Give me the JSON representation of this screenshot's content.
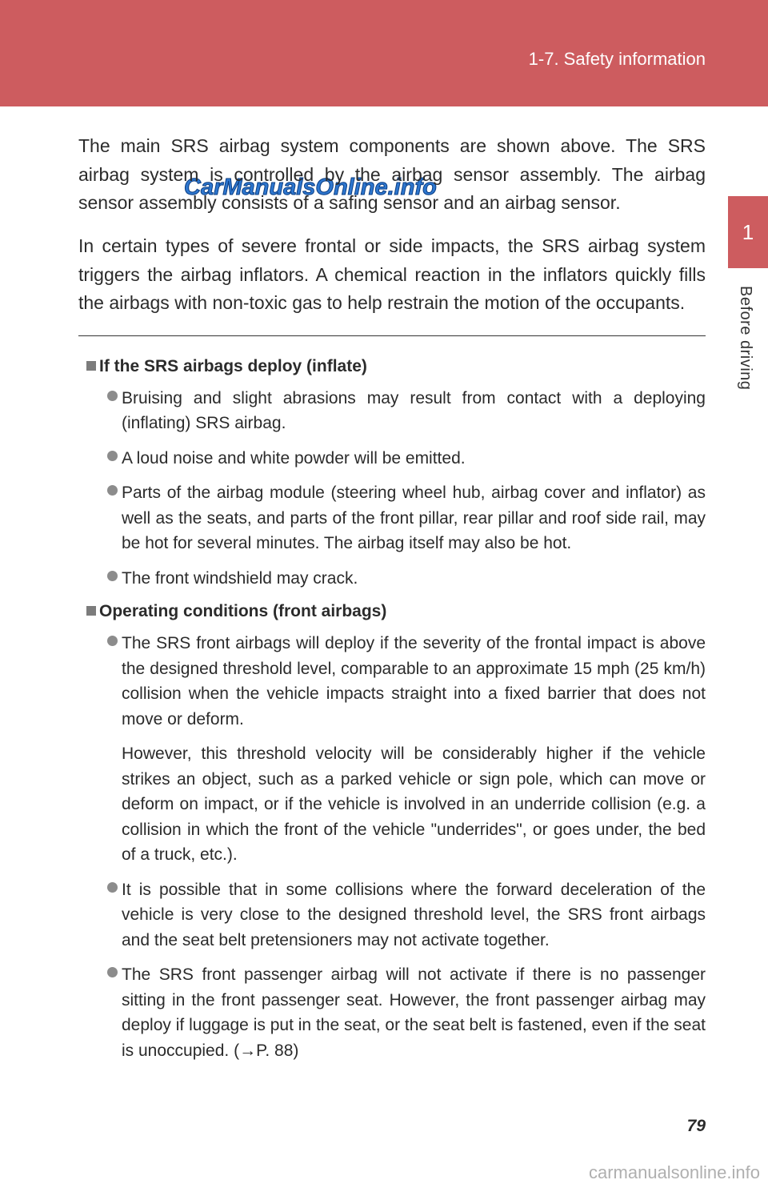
{
  "colors": {
    "header_bg": "#cd5c5f",
    "side_tab_bg": "#cd5c5f",
    "text": "#2b2b2b",
    "square_mark": "#7c7c7c",
    "bullet_dot": "#8c8c8c",
    "watermark_stroke": "#2e77cf",
    "footer_watermark": "rgba(110,110,110,0.55)"
  },
  "header": {
    "section_label": "1-7. Safety information"
  },
  "side": {
    "chapter_number": "1",
    "chapter_title": "Before driving"
  },
  "intro": {
    "para1": "The main SRS airbag system components are shown above. The SRS airbag system is controlled by the airbag sensor assembly. The airbag sensor assembly consists of a safing sensor and an airbag sensor.",
    "para2": "In certain types of severe frontal or side impacts, the SRS airbag system triggers the airbag inflators. A chemical reaction in the inflators quickly fills the airbags with non-toxic gas to help restrain the motion of the occupants."
  },
  "sections": [
    {
      "heading": "If the SRS airbags deploy (inflate)",
      "bullets": [
        {
          "text": "Bruising and slight abrasions may result from contact with a deploying (inflating) SRS airbag."
        },
        {
          "text": "A loud noise and white powder will be emitted."
        },
        {
          "text": "Parts of the airbag module (steering wheel hub, airbag cover and inflator) as well as the seats, and parts of the front pillar, rear pillar and roof side rail, may be hot for several minutes. The airbag itself may also be hot."
        },
        {
          "text": "The front windshield may crack."
        }
      ]
    },
    {
      "heading": "Operating conditions (front airbags)",
      "bullets": [
        {
          "text": "The SRS front airbags will deploy if the severity of the frontal impact is above the designed threshold level, comparable to an approximate 15 mph (25 km/h) collision when the vehicle impacts straight into a fixed barrier that does not move or deform.",
          "sub": "However, this threshold velocity will be considerably higher if the vehicle strikes an object, such as a parked vehicle or sign pole, which can move or deform on impact, or if the vehicle is involved in an underride collision (e.g. a collision in which the front of the vehicle \"underrides\", or goes under, the bed of a truck, etc.)."
        },
        {
          "text": "It is possible that in some collisions where the forward deceleration of the vehicle is very close to the designed threshold level, the SRS front airbags and the seat belt pretensioners may not activate together."
        },
        {
          "text": "The SRS front passenger airbag will not activate if there is no passenger sitting in the front passenger seat. However, the front passenger airbag may deploy if luggage is put in the seat, or the seat belt is fastened, even if the seat is unoccupied. (→P. 88)"
        }
      ]
    }
  ],
  "watermark_center": "CarManualsOnline.info",
  "page_number": "79",
  "footer_watermark": "carmanualsonline.info"
}
